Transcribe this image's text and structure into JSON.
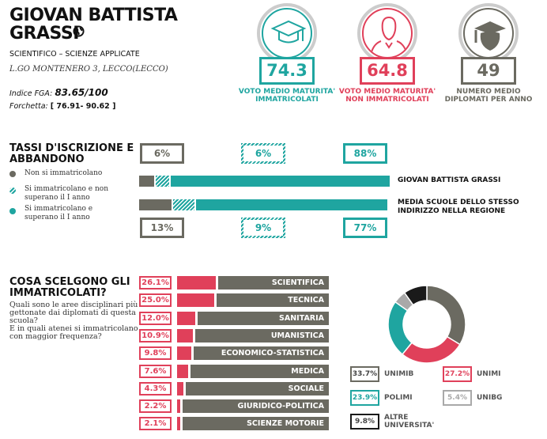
{
  "school": {
    "name_line1": "GIOVAN BATTISTA",
    "name_line2": "GRASSI",
    "type": "SCIENTIFICO – SCIENZE APPLICATE",
    "address": "L.GO MONTENERO 3, LECCO(LECCO)",
    "fga_label": "Indice FGA:",
    "fga_value": "83.65/100",
    "range_label": "Forchetta:",
    "range_value": "[ 76.91- 90.62 ]"
  },
  "kpis": [
    {
      "value": "74.3",
      "label1": "VOTO MEDIO MATURITA'",
      "label2": "IMMATRICOLATI",
      "color": "#1fa5a0",
      "icon": "graduation-cap-icon"
    },
    {
      "value": "64.8",
      "label1": "VOTO MEDIO MATURITA'",
      "label2": "NON IMMATRICOLATI",
      "color": "#e0405a",
      "icon": "person-icon"
    },
    {
      "value": "49",
      "label1": "NUMERO MEDIO",
      "label2": "DIPLOMATI PER ANNO",
      "color": "#6b6a61",
      "icon": "graduate-icon"
    }
  ],
  "rates": {
    "title1": "TASSI D'ISCRIZIONE E",
    "title2": "ABBANDONO",
    "legend": [
      {
        "l1": "Non si immatricolano",
        "l2": ""
      },
      {
        "l1": "Si immatricolano e non",
        "l2": "superano il I anno"
      },
      {
        "l1": "Si immatricolano e",
        "l2": "superano il I anno"
      }
    ],
    "school": {
      "label": "GIOVAN BATTISTA GRASSI",
      "values": [
        6,
        6,
        88
      ],
      "texts": [
        "6%",
        "6%",
        "88%"
      ]
    },
    "region": {
      "label1": "MEDIA SCUOLE DELLO STESSO",
      "label2": "INDIRIZZO NELLA REGIONE",
      "values": [
        13,
        9,
        77
      ],
      "texts": [
        "13%",
        "9%",
        "77%"
      ]
    }
  },
  "choices": {
    "title1": "COSA SCELGONO GLI",
    "title2": "IMMATRICOLATI?",
    "desc": [
      "Quali sono le aree disciplinari più",
      "gettonate dai diplomati di questa",
      "scuola?",
      "E in quali atenei si immatricolano",
      "con maggior frequenza?"
    ],
    "areas": [
      {
        "label": "SCIENTIFICA",
        "value": 26.1,
        "text": "26.1%"
      },
      {
        "label": "TECNICA",
        "value": 25.0,
        "text": "25.0%"
      },
      {
        "label": "SANITARIA",
        "value": 12.0,
        "text": "12.0%"
      },
      {
        "label": "UMANISTICA",
        "value": 10.9,
        "text": "10.9%"
      },
      {
        "label": "ECONOMICO-STATISTICA",
        "value": 9.8,
        "text": "9.8%"
      },
      {
        "label": "MEDICA",
        "value": 7.6,
        "text": "7.6%"
      },
      {
        "label": "SOCIALE",
        "value": 4.3,
        "text": "4.3%"
      },
      {
        "label": "GIURIDICO-POLITICA",
        "value": 2.2,
        "text": "2.2%"
      },
      {
        "label": "SCIENZE MOTORIE",
        "value": 2.1,
        "text": "2.1%"
      }
    ]
  },
  "chart_data": {
    "type": "pie",
    "title": "",
    "categories": [
      "UNIMIB",
      "UNIMI",
      "POLIMI",
      "UNIBG",
      "ALTRE UNIVERSITA'"
    ],
    "values": [
      33.7,
      27.2,
      23.9,
      5.4,
      9.8
    ],
    "texts": [
      "33.7%",
      "27.2%",
      "23.9%",
      "5.4%",
      "9.8%"
    ],
    "colors": [
      "#6b6a61",
      "#e0405a",
      "#1fa5a0",
      "#a9a9a9",
      "#1a1a1a"
    ],
    "legend_placement": "bottom"
  }
}
